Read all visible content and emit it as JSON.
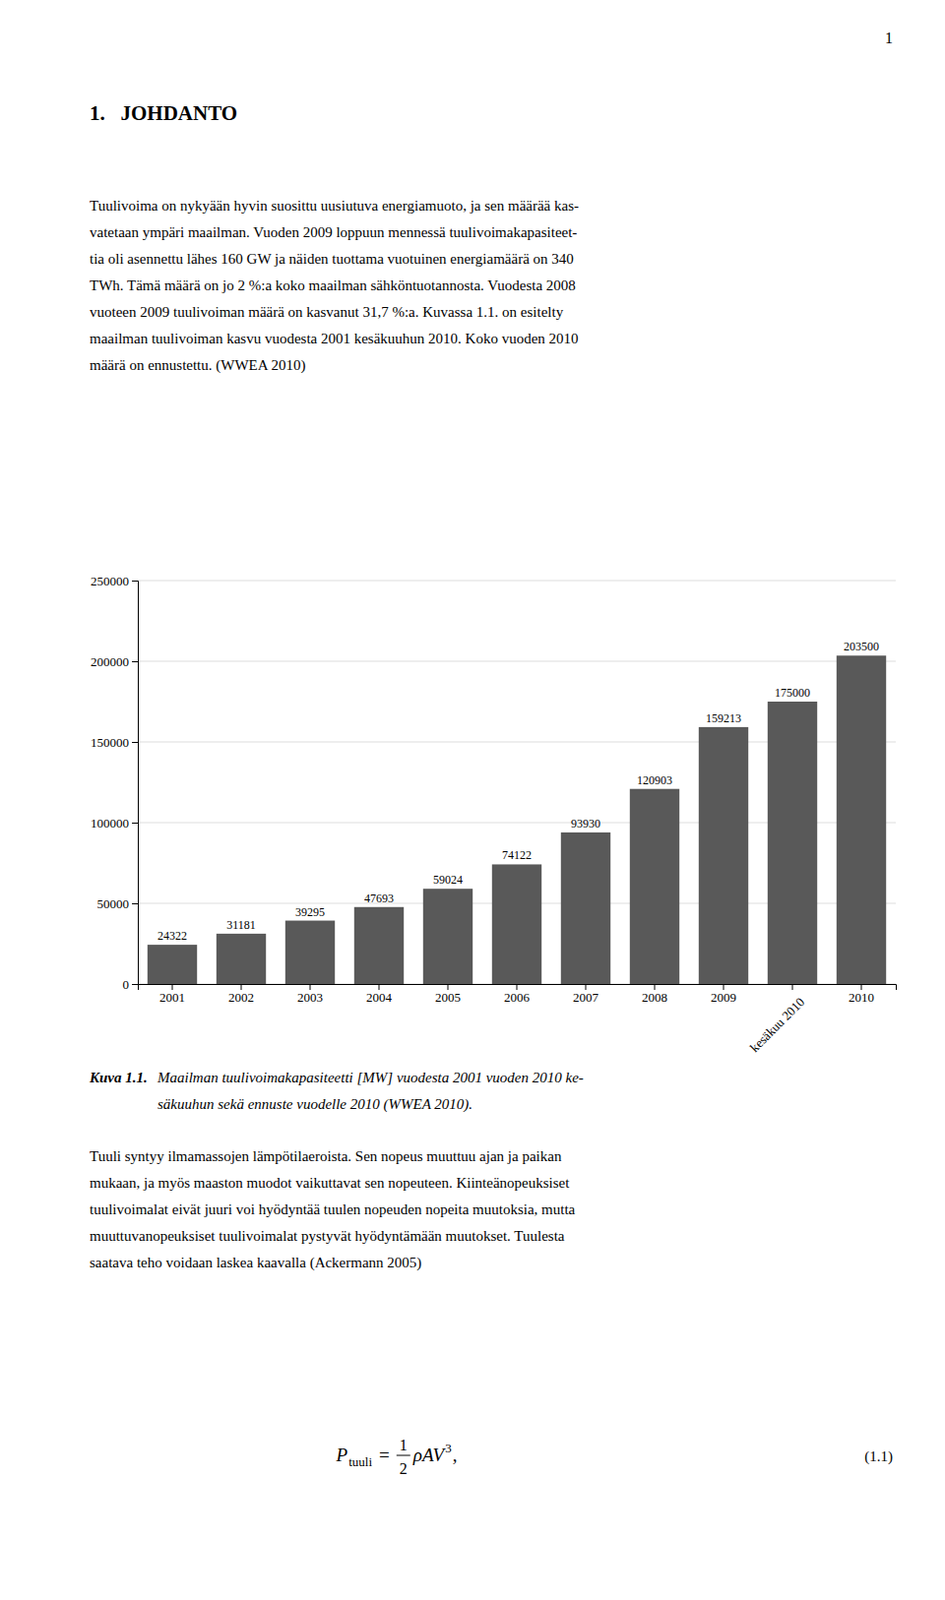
{
  "page_number": "1",
  "chapter_title": "1.   JOHDANTO",
  "para1_lines": [
    "Tuulivoima on nykyään hyvin suosittu uusiutuva energiamuoto, ja sen määrää kas-",
    "vatetaan ympäri maailman. Vuoden 2009 loppuun mennessä tuulivoimakapasiteet-",
    "tia oli asennettu lähes 160 GW ja näiden tuottama vuotuinen energiamäärä on 340",
    "TWh. Tämä määrä on jo 2 %:a koko maailman sähköntuotannosta. Vuodesta 2008",
    "vuoteen 2009 tuulivoiman määrä on kasvanut 31,7 %:a. Kuvassa 1.1. on esitelty",
    "maailman tuulivoiman kasvu vuodesta 2001 kesäkuuhun 2010. Koko vuoden 2010",
    "määrä on ennustettu. (WWEA 2010)"
  ],
  "chart_data": {
    "type": "bar",
    "categories": [
      "2001",
      "2002",
      "2003",
      "2004",
      "2005",
      "2006",
      "2007",
      "2008",
      "2009",
      "kesäkuu 2010",
      "2010"
    ],
    "values": [
      24322,
      31181,
      39295,
      47693,
      59024,
      74122,
      93930,
      120903,
      159213,
      175000,
      203500
    ],
    "color": "#595959",
    "ylim": [
      0,
      250000
    ],
    "yticks": [
      0,
      50000,
      100000,
      150000,
      200000,
      250000
    ],
    "grid": true,
    "data_labels": true
  },
  "caption_label": "Kuva 1.1.",
  "caption_lines": [
    "Maailman tuulivoimakapasiteetti [MW] vuodesta 2001 vuoden 2010 ke-",
    "säkuuhun sekä ennuste vuodelle 2010 (WWEA 2010)."
  ],
  "para2_lines": [
    "Tuuli syntyy ilmamassojen lämpötilaeroista. Sen nopeus muuttuu ajan ja paikan",
    "mukaan, ja myös maaston muodot vaikuttavat sen nopeuteen. Kiinteänopeuksiset",
    "tuulivoimalat eivät juuri voi hyödyntää tuulen nopeuden nopeita muutoksia, mutta",
    "muuttuvanopeuksiset tuulivoimalat pystyvät hyödyntämään muutokset. Tuulesta",
    "saatava teho voidaan laskea kaavalla (Ackermann 2005)"
  ],
  "formula": {
    "lhs": "P",
    "lhs_sub": "tuuli",
    "eq": "=",
    "num": "1",
    "den": "2",
    "rhs": "ρAV",
    "rhs_sup": "3",
    "end": ","
  },
  "formula_number": "(1.1)"
}
